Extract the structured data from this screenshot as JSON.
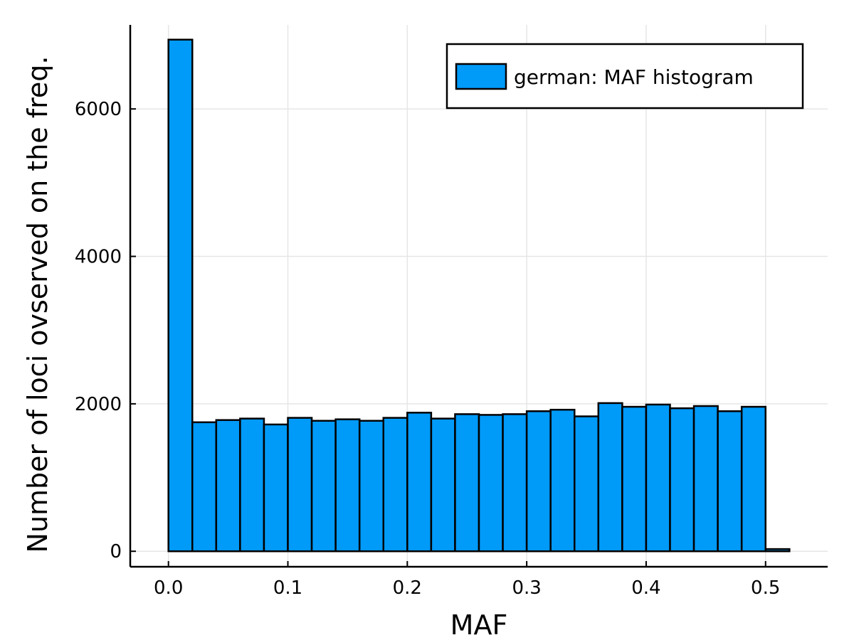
{
  "chart_data": {
    "type": "bar",
    "title": "",
    "xlabel": "MAF",
    "ylabel": "Number of loci ovserved on the freq.",
    "bin_edges": [
      0.0,
      0.02,
      0.04,
      0.06,
      0.08,
      0.1,
      0.12,
      0.14,
      0.16,
      0.18,
      0.2,
      0.22,
      0.24,
      0.26,
      0.28,
      0.3,
      0.32,
      0.34,
      0.36,
      0.38,
      0.4,
      0.42,
      0.44,
      0.46,
      0.48,
      0.5,
      0.52
    ],
    "series": [
      {
        "name": "german: MAF histogram",
        "color": "#009af9",
        "values": [
          6940,
          1750,
          1780,
          1800,
          1720,
          1810,
          1770,
          1790,
          1770,
          1810,
          1880,
          1800,
          1860,
          1850,
          1860,
          1900,
          1920,
          1830,
          2010,
          1960,
          1990,
          1940,
          1970,
          1900,
          1960,
          30
        ]
      }
    ],
    "xlim": [
      -0.032,
      0.552
    ],
    "ylim": [
      -210,
      7140
    ],
    "x_ticks": [
      0.0,
      0.1,
      0.2,
      0.3,
      0.4,
      0.5
    ],
    "x_tick_labels": [
      "0.0",
      "0.1",
      "0.2",
      "0.3",
      "0.4",
      "0.5"
    ],
    "y_ticks": [
      0,
      2000,
      4000,
      6000
    ],
    "y_tick_labels": [
      "0",
      "2000",
      "4000",
      "6000"
    ],
    "grid": true,
    "legend_position": "top-right"
  }
}
